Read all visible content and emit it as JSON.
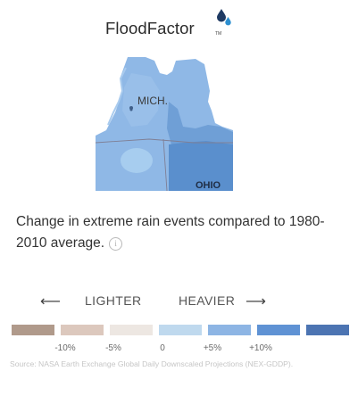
{
  "brand": {
    "name": "FloodFactor",
    "tm": "TM",
    "colors": {
      "drop_dark": "#1f3a63",
      "drop_light": "#2d8fd0"
    }
  },
  "map": {
    "labels": {
      "michigan": "MICH.",
      "ohio": "OHIO"
    },
    "colors": {
      "base": "#8fb8e6",
      "light": "#a6ccee",
      "medium": "#6f9fd6",
      "dark": "#5a8fcd",
      "border": "#7f7f95"
    }
  },
  "caption": {
    "text": "Change in extreme rain events compared to 1980-2010 average.",
    "info_icon": "i"
  },
  "direction": {
    "lighter": "LIGHTER",
    "heavier": "HEAVIER",
    "left_arrow": "⟵",
    "right_arrow": "⟶"
  },
  "legend": {
    "swatches": [
      "#b09a8b",
      "#dcc8bd",
      "#ede7e2",
      "#bfd9ee",
      "#8db5e4",
      "#5f92d4",
      "#4c74b2"
    ],
    "ticks": [
      "-10%",
      "-5%",
      "0",
      "+5%",
      "+10%"
    ]
  },
  "source": "Source: NASA Earth Exchange Global Daily Downscaled Projections (NEX-GDDP)."
}
